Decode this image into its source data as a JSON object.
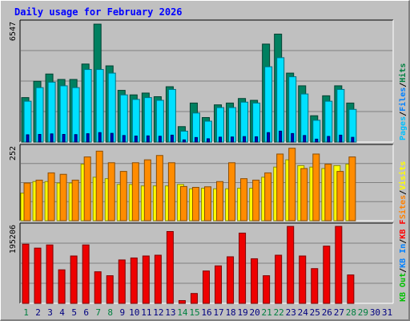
{
  "title": "Daily usage for February 2026",
  "colors": {
    "background": "#c0c0c0",
    "hits": "#008040",
    "files": "#00c8ff",
    "pages": "#00e0ff",
    "visits": "#ffff00",
    "sites": "#ff8000",
    "kbf": "#ff0000",
    "title": "#0000ff"
  },
  "days": [
    "1",
    "2",
    "3",
    "4",
    "5",
    "6",
    "7",
    "8",
    "9",
    "10",
    "11",
    "12",
    "13",
    "14",
    "15",
    "16",
    "17",
    "18",
    "19",
    "20",
    "21",
    "22",
    "23",
    "24",
    "25",
    "26",
    "27",
    "28",
    "29",
    "30",
    "31"
  ],
  "weekend_day_color": "#008040",
  "weekend_days": [
    "1",
    "7",
    "8",
    "14",
    "15",
    "21",
    "22",
    "28",
    "29"
  ],
  "chart_data": [
    {
      "type": "bar",
      "name": "hits-files-pages",
      "ymax_label": "6547",
      "ymax": 6547,
      "legend_right": [
        {
          "text": "Hits",
          "color": "#008040"
        },
        {
          "text": "/",
          "color": "#000000"
        },
        {
          "text": "Files",
          "color": "#0080ff"
        },
        {
          "text": "/",
          "color": "#000000"
        },
        {
          "text": "Pages",
          "color": "#00c0ff"
        }
      ],
      "series": [
        {
          "name": "Hits",
          "values": [
            2450,
            3350,
            3750,
            3450,
            3450,
            4300,
            6500,
            4200,
            2850,
            2600,
            2700,
            2500,
            3050,
            850,
            2150,
            1350,
            2050,
            2150,
            2400,
            2300,
            5400,
            5950,
            3800,
            3100,
            1450,
            2550,
            3100,
            2150,
            0,
            0,
            0
          ]
        },
        {
          "name": "Files",
          "values": [
            2250,
            3000,
            3300,
            3100,
            3000,
            4000,
            4000,
            3800,
            2600,
            2350,
            2450,
            2300,
            2900,
            600,
            1600,
            1150,
            1900,
            1900,
            2200,
            2150,
            4150,
            4650,
            3600,
            2650,
            1200,
            2250,
            2900,
            1800,
            0,
            0,
            0
          ]
        },
        {
          "name": "Pages",
          "values": [
            400,
            420,
            450,
            420,
            410,
            460,
            520,
            480,
            360,
            330,
            340,
            320,
            380,
            120,
            250,
            180,
            270,
            280,
            300,
            290,
            520,
            600,
            470,
            360,
            160,
            310,
            380,
            260,
            0,
            0,
            0
          ]
        }
      ]
    },
    {
      "type": "bar",
      "name": "visits-sites",
      "ymax_label": "252",
      "ymax": 252,
      "legend_right": [
        {
          "text": "Visits",
          "color": "#ffff00"
        },
        {
          "text": "/",
          "color": "#000000"
        },
        {
          "text": "Sites",
          "color": "#ff8000"
        }
      ],
      "series": [
        {
          "name": "Visits",
          "values": [
            95,
            135,
            135,
            130,
            130,
            195,
            150,
            145,
            125,
            125,
            120,
            120,
            120,
            125,
            110,
            112,
            110,
            110,
            112,
            112,
            150,
            185,
            210,
            190,
            185,
            180,
            190,
            195,
            0,
            0,
            0
          ]
        },
        {
          "name": "Sites",
          "values": [
            130,
            140,
            165,
            160,
            140,
            220,
            240,
            200,
            170,
            200,
            210,
            225,
            200,
            118,
            115,
            117,
            135,
            200,
            145,
            140,
            165,
            230,
            250,
            180,
            230,
            195,
            170,
            220,
            0,
            0,
            0
          ]
        }
      ]
    },
    {
      "type": "bar",
      "name": "kbf",
      "ymax_label": "195206",
      "ymax": 195206,
      "legend_right": [
        {
          "text": "KB F",
          "color": "#ff0000"
        },
        {
          "text": "/",
          "color": "#000000"
        },
        {
          "text": "KB In",
          "color": "#0080ff"
        },
        {
          "text": "/",
          "color": "#000000"
        },
        {
          "text": "KB Out",
          "color": "#00c000"
        }
      ],
      "series": [
        {
          "name": "KB F",
          "values": [
            150000,
            140000,
            148000,
            85000,
            120000,
            148000,
            80000,
            70000,
            110000,
            115000,
            120000,
            122000,
            182000,
            7000,
            25000,
            82000,
            95000,
            118000,
            178000,
            113000,
            70000,
            122000,
            195000,
            120000,
            88000,
            145000,
            195000,
            72000,
            0,
            0,
            0
          ]
        }
      ]
    }
  ]
}
